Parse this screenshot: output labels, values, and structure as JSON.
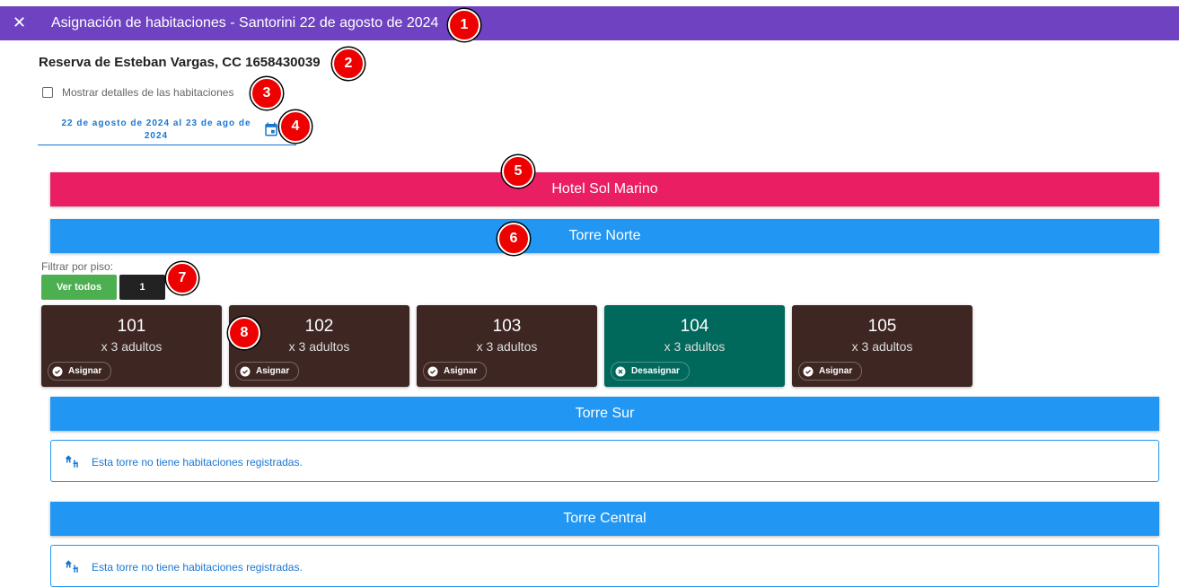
{
  "header": {
    "title": "Asignación de habitaciones - Santorini 22 de agosto de 2024"
  },
  "reservation": "Reserva de Esteban Vargas, CC 1658430039",
  "show_details_label": "Mostrar detalles de las habitaciones",
  "date_range": "22 de agosto de 2024 al 23 de ago de 2024",
  "hotel": "Hotel Sol Marino",
  "towers": [
    {
      "name": "Torre Norte",
      "floor_filter": {
        "label": "Filtrar por piso:",
        "buttons": [
          "Ver todos",
          "1"
        ]
      },
      "rooms": [
        {
          "number": "101",
          "capacity": "x 3 adultos",
          "action": "Asignar"
        },
        {
          "number": "102",
          "capacity": "x 3 adultos",
          "action": "Asignar"
        },
        {
          "number": "103",
          "capacity": "x 3 adultos",
          "action": "Asignar"
        },
        {
          "number": "104",
          "capacity": "x 3 adultos",
          "action": "Desasignar"
        },
        {
          "number": "105",
          "capacity": "x 3 adultos",
          "action": "Asignar"
        }
      ]
    },
    {
      "name": "Torre Sur",
      "empty_message": "Esta torre no tiene habitaciones registradas."
    },
    {
      "name": "Torre Central",
      "empty_message": "Esta torre no tiene habitaciones registradas."
    }
  ],
  "annotations": [
    "1",
    "2",
    "3",
    "4",
    "5",
    "6",
    "7",
    "8"
  ]
}
